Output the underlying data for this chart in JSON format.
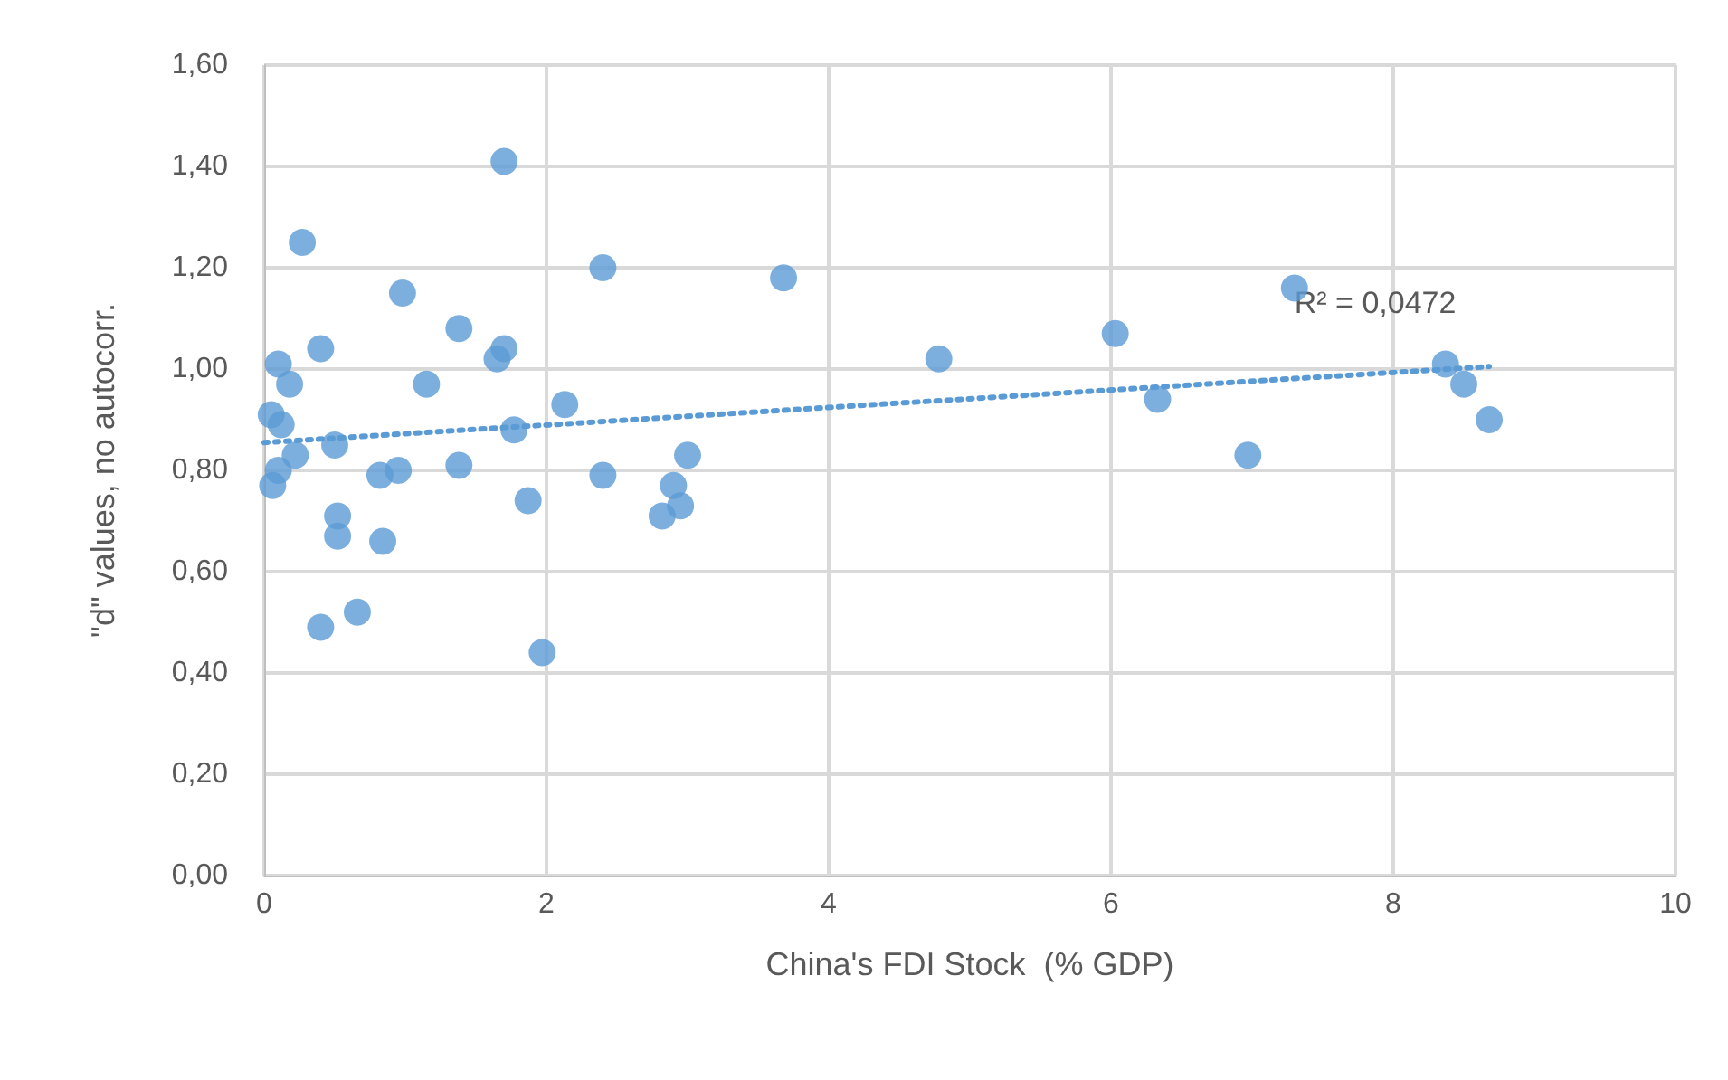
{
  "chart_data": {
    "type": "scatter",
    "xlabel": "China's FDI Stock  (% GDP)",
    "ylabel": "\"d\" values, no autocorr.",
    "x": [
      0.05,
      0.1,
      0.12,
      0.06,
      0.1,
      0.22,
      0.18,
      0.27,
      0.4,
      0.4,
      0.5,
      0.52,
      0.52,
      0.66,
      0.82,
      0.84,
      0.95,
      0.98,
      1.15,
      1.38,
      1.38,
      1.65,
      1.7,
      1.7,
      1.77,
      1.87,
      1.97,
      2.13,
      2.4,
      2.4,
      2.82,
      2.9,
      2.95,
      3.0,
      3.68,
      4.78,
      6.03,
      6.33,
      6.97,
      7.3,
      8.37,
      8.5,
      8.68
    ],
    "series": [
      {
        "color": "#5b9bd5",
        "marker": "circle",
        "values": [
          0.91,
          1.01,
          0.89,
          0.77,
          0.8,
          0.83,
          0.97,
          1.25,
          1.04,
          0.49,
          0.85,
          0.71,
          0.67,
          0.52,
          0.79,
          0.66,
          0.8,
          1.15,
          0.97,
          1.08,
          0.81,
          1.02,
          1.04,
          1.41,
          0.88,
          0.74,
          0.44,
          0.93,
          1.2,
          0.79,
          0.71,
          0.77,
          0.73,
          0.83,
          1.18,
          1.02,
          1.07,
          0.94,
          0.83,
          1.16,
          1.01,
          0.97,
          0.9
        ]
      },
      {
        "type": "line",
        "color": "#5b9bd5",
        "line_style": "dotted",
        "marker": "none",
        "x": [
          0,
          8.68
        ],
        "values": [
          0.855,
          1.005
        ]
      }
    ],
    "annotations": [
      {
        "text": "R² = 0,0472",
        "x": 7.3,
        "y": 1.13
      }
    ],
    "xlim": [
      0,
      10
    ],
    "xticks": [
      0,
      2,
      4,
      6,
      8,
      10
    ],
    "ylim": [
      0,
      1.6
    ],
    "yticks": [
      {
        "value": 0,
        "label": "0,00"
      },
      {
        "value": 0.2,
        "label": "0,20"
      },
      {
        "value": 0.4,
        "label": "0,40"
      },
      {
        "value": 0.6,
        "label": "0,60"
      },
      {
        "value": 0.8,
        "label": "0,80"
      },
      {
        "value": 1.0,
        "label": "1,00"
      },
      {
        "value": 1.2,
        "label": "1,20"
      },
      {
        "value": 1.4,
        "label": "1,40"
      },
      {
        "value": 1.6,
        "label": "1,60"
      }
    ],
    "grid": true
  }
}
